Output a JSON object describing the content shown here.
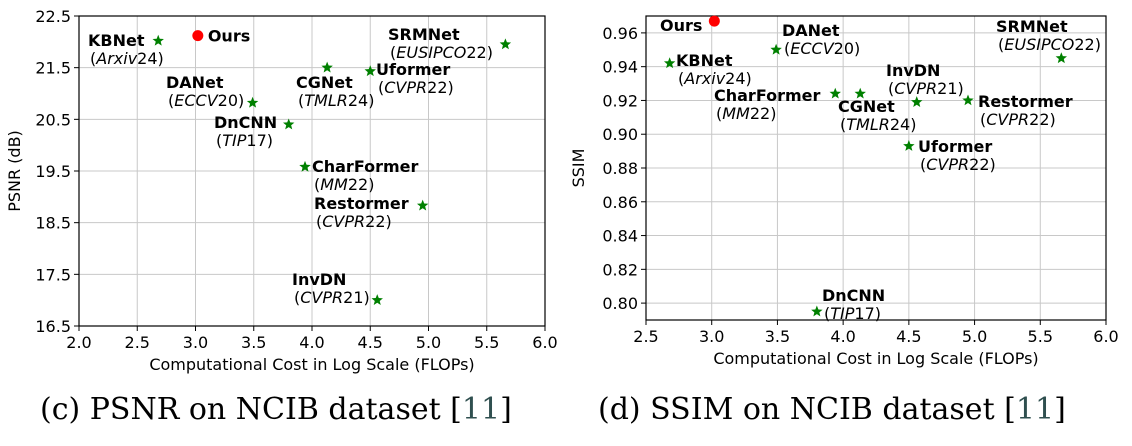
{
  "captions": [
    {
      "text": "(c) PSNR on NCIB dataset [",
      "ref": "11",
      "close": "]"
    },
    {
      "text": "(d) SSIM on NCIB dataset [",
      "ref": "11",
      "close": "]"
    }
  ],
  "chart_data": [
    {
      "type": "scatter",
      "xlabel": "Computational Cost in Log Scale (FLOPs)",
      "ylabel": "PSNR (dB)",
      "xlim": [
        2.0,
        6.0
      ],
      "ylim": [
        16.5,
        22.5
      ],
      "xticks": [
        "2.0",
        "2.5",
        "3.0",
        "3.5",
        "4.0",
        "4.5",
        "5.0",
        "5.5",
        "6.0"
      ],
      "yticks": [
        "16.5",
        "17.5",
        "18.5",
        "19.5",
        "20.5",
        "21.5",
        "22.5"
      ],
      "grid": true,
      "colors": {
        "ours": "#ff0000",
        "others": "#008000"
      },
      "points": [
        {
          "name": "Ours",
          "venue": "",
          "year": "",
          "x": 3.02,
          "y": 22.12,
          "marker": "circle"
        },
        {
          "name": "KBNet",
          "venue": "Arxiv",
          "year": "24",
          "x": 2.68,
          "y": 22.02,
          "marker": "star"
        },
        {
          "name": "SRMNet",
          "venue": "EUSIPCO",
          "year": "22",
          "x": 5.66,
          "y": 21.95,
          "marker": "star"
        },
        {
          "name": "CGNet",
          "venue": "TMLR",
          "year": "24",
          "x": 4.13,
          "y": 21.5,
          "marker": "star"
        },
        {
          "name": "Uformer",
          "venue": "CVPR",
          "year": "22",
          "x": 4.5,
          "y": 21.43,
          "marker": "star"
        },
        {
          "name": "DANet",
          "venue": "ECCV",
          "year": "20",
          "x": 3.49,
          "y": 20.82,
          "marker": "star"
        },
        {
          "name": "DnCNN",
          "venue": "TIP",
          "year": "17",
          "x": 3.8,
          "y": 20.4,
          "marker": "star"
        },
        {
          "name": "CharFormer",
          "venue": "MM",
          "year": "22",
          "x": 3.94,
          "y": 19.58,
          "marker": "star"
        },
        {
          "name": "Restormer",
          "venue": "CVPR",
          "year": "22",
          "x": 4.95,
          "y": 18.83,
          "marker": "star"
        },
        {
          "name": "InvDN",
          "venue": "CVPR",
          "year": "21",
          "x": 4.56,
          "y": 17.0,
          "marker": "star"
        }
      ]
    },
    {
      "type": "scatter",
      "xlabel": "Computational Cost in Log Scale (FLOPs)",
      "ylabel": "SSIM",
      "xlim": [
        2.5,
        6.0
      ],
      "ylim": [
        0.79,
        0.97
      ],
      "xticks": [
        "2.5",
        "3.0",
        "3.5",
        "4.0",
        "4.5",
        "5.0",
        "5.5",
        "6.0"
      ],
      "yticks": [
        "0.80",
        "0.82",
        "0.84",
        "0.86",
        "0.88",
        "0.90",
        "0.92",
        "0.94",
        "0.96"
      ],
      "grid": true,
      "colors": {
        "ours": "#ff0000",
        "others": "#008000"
      },
      "points": [
        {
          "name": "Ours",
          "venue": "",
          "year": "",
          "x": 3.02,
          "y": 0.967,
          "marker": "circle"
        },
        {
          "name": "KBNet",
          "venue": "Arxiv",
          "year": "24",
          "x": 2.68,
          "y": 0.942,
          "marker": "star"
        },
        {
          "name": "DANet",
          "venue": "ECCV",
          "year": "20",
          "x": 3.49,
          "y": 0.95,
          "marker": "star"
        },
        {
          "name": "SRMNet",
          "venue": "EUSIPCO",
          "year": "22",
          "x": 5.66,
          "y": 0.945,
          "marker": "star"
        },
        {
          "name": "CharFormer",
          "venue": "MM",
          "year": "22",
          "x": 3.94,
          "y": 0.924,
          "marker": "star"
        },
        {
          "name": "CGNet",
          "venue": "TMLR",
          "year": "24",
          "x": 4.13,
          "y": 0.924,
          "marker": "star"
        },
        {
          "name": "InvDN",
          "venue": "CVPR",
          "year": "21",
          "x": 4.56,
          "y": 0.919,
          "marker": "star"
        },
        {
          "name": "Restormer",
          "venue": "CVPR",
          "year": "22",
          "x": 4.95,
          "y": 0.92,
          "marker": "star"
        },
        {
          "name": "Uformer",
          "venue": "CVPR",
          "year": "22",
          "x": 4.5,
          "y": 0.893,
          "marker": "star"
        },
        {
          "name": "DnCNN",
          "venue": "TIP",
          "year": "17",
          "x": 3.8,
          "y": 0.795,
          "marker": "star"
        }
      ]
    }
  ]
}
